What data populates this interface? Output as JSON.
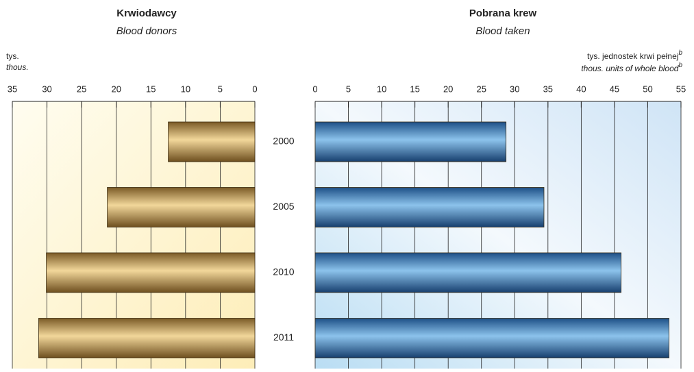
{
  "chart_data": [
    {
      "type": "bar",
      "orientation": "horizontal",
      "title": "Krwiodawcy",
      "subtitle": "Blood donors",
      "unit_label": "tys.",
      "unit_label_en": "thous.",
      "categories": [
        "2000",
        "2005",
        "2010",
        "2011"
      ],
      "values": [
        12.5,
        21.3,
        30.1,
        31.2
      ],
      "color": "#c9a15a",
      "reversed": true,
      "xlim": [
        0,
        35
      ],
      "xticks": [
        0,
        5,
        10,
        15,
        20,
        25,
        30,
        35
      ],
      "grid": true
    },
    {
      "type": "bar",
      "orientation": "horizontal",
      "title": "Pobrana krew",
      "subtitle": "Blood taken",
      "unit_label": "tys. jednostek krwi pełnej",
      "unit_label_en": "thous. units of whole blood",
      "footnote_marker": "b",
      "values": [
        28.7,
        34.4,
        46.0,
        53.2
      ],
      "color": "#3f80bf",
      "reversed": false,
      "xlim": [
        0,
        55
      ],
      "xticks": [
        0,
        5,
        10,
        15,
        20,
        25,
        30,
        35,
        40,
        45,
        50,
        55
      ],
      "grid": true
    }
  ]
}
